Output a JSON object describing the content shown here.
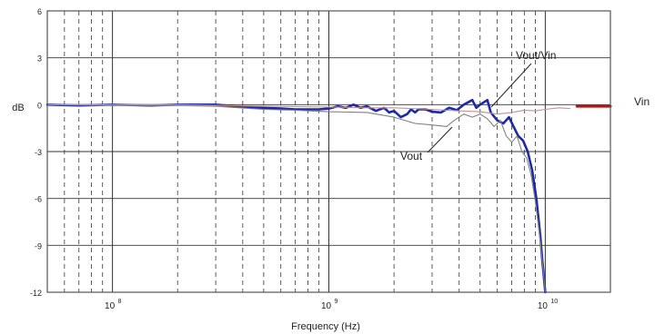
{
  "chart_data": {
    "type": "line",
    "title": "",
    "xlabel": "Frequency (Hz)",
    "ylabel": "dB",
    "x_scale": "log",
    "xlim": [
      50000000,
      20000000000
    ],
    "ylim": [
      -12,
      6
    ],
    "yticks": [
      6,
      3,
      0,
      -3,
      -6,
      -9,
      -12
    ],
    "ytick_labels": [
      "6",
      "3",
      "0",
      "-3",
      "-6",
      "-9",
      "-12"
    ],
    "xticks": [
      {
        "base": "10",
        "exp": "8",
        "value": 100000000
      },
      {
        "base": "10",
        "exp": "9",
        "value": 1000000000
      },
      {
        "base": "10",
        "exp": "10",
        "value": 10000000000
      }
    ],
    "grid": true,
    "colors": {
      "vout_vin": "#1a2aa8",
      "vin": "#b01818",
      "vin_trace": "#c89090",
      "vout": "#808080",
      "grid": "#333333",
      "frame": "#555555"
    },
    "annotations": {
      "vout_vin": "Vout/Vin",
      "vout": "Vout",
      "vin": "Vin"
    },
    "series": [
      {
        "name": "Vout/Vin",
        "style": "thick",
        "points": [
          [
            50000000,
            0.0
          ],
          [
            70000000,
            -0.05
          ],
          [
            100000000,
            0.0
          ],
          [
            150000000,
            -0.05
          ],
          [
            200000000,
            0.0
          ],
          [
            300000000,
            0.0
          ],
          [
            400000000,
            -0.15
          ],
          [
            500000000,
            -0.2
          ],
          [
            600000000,
            -0.25
          ],
          [
            700000000,
            -0.3
          ],
          [
            800000000,
            -0.3
          ],
          [
            900000000,
            -0.3
          ],
          [
            1000000000,
            -0.25
          ],
          [
            1100000000,
            -0.1
          ],
          [
            1200000000,
            -0.2
          ],
          [
            1300000000,
            0.0
          ],
          [
            1400000000,
            -0.2
          ],
          [
            1500000000,
            -0.1
          ],
          [
            1650000000,
            -0.4
          ],
          [
            1800000000,
            -0.2
          ],
          [
            1900000000,
            -0.5
          ],
          [
            2000000000,
            -0.4
          ],
          [
            2150000000,
            -0.8
          ],
          [
            2300000000,
            -0.6
          ],
          [
            2400000000,
            -0.3
          ],
          [
            2500000000,
            -0.5
          ],
          [
            2600000000,
            -0.3
          ],
          [
            2800000000,
            -0.3
          ],
          [
            3000000000,
            -0.45
          ],
          [
            3300000000,
            -0.5
          ],
          [
            3600000000,
            -0.2
          ],
          [
            3900000000,
            -0.35
          ],
          [
            4200000000,
            0.0
          ],
          [
            4600000000,
            0.3
          ],
          [
            4800000000,
            -0.2
          ],
          [
            5000000000,
            0.0
          ],
          [
            5400000000,
            0.3
          ],
          [
            5600000000,
            -0.5
          ],
          [
            6000000000,
            -1.0
          ],
          [
            6400000000,
            -1.2
          ],
          [
            6800000000,
            -0.8
          ],
          [
            7200000000,
            -1.5
          ],
          [
            7500000000,
            -2.0
          ],
          [
            7900000000,
            -2.3
          ],
          [
            8300000000,
            -3.0
          ],
          [
            8700000000,
            -4.2
          ],
          [
            9100000000,
            -6.0
          ],
          [
            9500000000,
            -8.5
          ],
          [
            9700000000,
            -10.0
          ],
          [
            10000000000,
            -12.0
          ]
        ]
      },
      {
        "name": "Vout",
        "style": "thin",
        "points": [
          [
            50000000,
            0.0
          ],
          [
            100000000,
            -0.05
          ],
          [
            200000000,
            -0.05
          ],
          [
            300000000,
            -0.1
          ],
          [
            500000000,
            -0.3
          ],
          [
            700000000,
            -0.35
          ],
          [
            1000000000,
            -0.45
          ],
          [
            1500000000,
            -0.5
          ],
          [
            2000000000,
            -0.8
          ],
          [
            2500000000,
            -1.2
          ],
          [
            3000000000,
            -1.3
          ],
          [
            3500000000,
            -1.4
          ],
          [
            3800000000,
            -1.0
          ],
          [
            4200000000,
            -0.6
          ],
          [
            4600000000,
            -0.8
          ],
          [
            5000000000,
            -0.6
          ],
          [
            5400000000,
            -0.9
          ],
          [
            5800000000,
            -1.4
          ],
          [
            6200000000,
            -1.0
          ],
          [
            6600000000,
            -2.0
          ],
          [
            7000000000,
            -2.4
          ],
          [
            7400000000,
            -2.0
          ],
          [
            7800000000,
            -3.0
          ],
          [
            8200000000,
            -3.4
          ],
          [
            8600000000,
            -4.5
          ],
          [
            9000000000,
            -6.2
          ],
          [
            9500000000,
            -8.8
          ],
          [
            10000000000,
            -12.0
          ]
        ]
      },
      {
        "name": "Vin",
        "style": "thin",
        "points": [
          [
            50000000,
            0.0
          ],
          [
            200000000,
            0.0
          ],
          [
            500000000,
            -0.1
          ],
          [
            1000000000,
            -0.15
          ],
          [
            1500000000,
            -0.2
          ],
          [
            2000000000,
            -0.2
          ],
          [
            3000000000,
            -0.3
          ],
          [
            4000000000,
            -0.4
          ],
          [
            5000000000,
            -0.45
          ],
          [
            6000000000,
            -0.6
          ],
          [
            7000000000,
            -0.5
          ],
          [
            8000000000,
            -0.35
          ],
          [
            9000000000,
            -0.4
          ],
          [
            10000000000,
            -0.3
          ],
          [
            11500000000,
            -0.2
          ],
          [
            13000000000,
            -0.25
          ]
        ]
      },
      {
        "name": "Vin",
        "style": "legend",
        "points": [
          [
            14000000000,
            -0.1
          ],
          [
            20000000000,
            -0.1
          ]
        ]
      }
    ]
  }
}
